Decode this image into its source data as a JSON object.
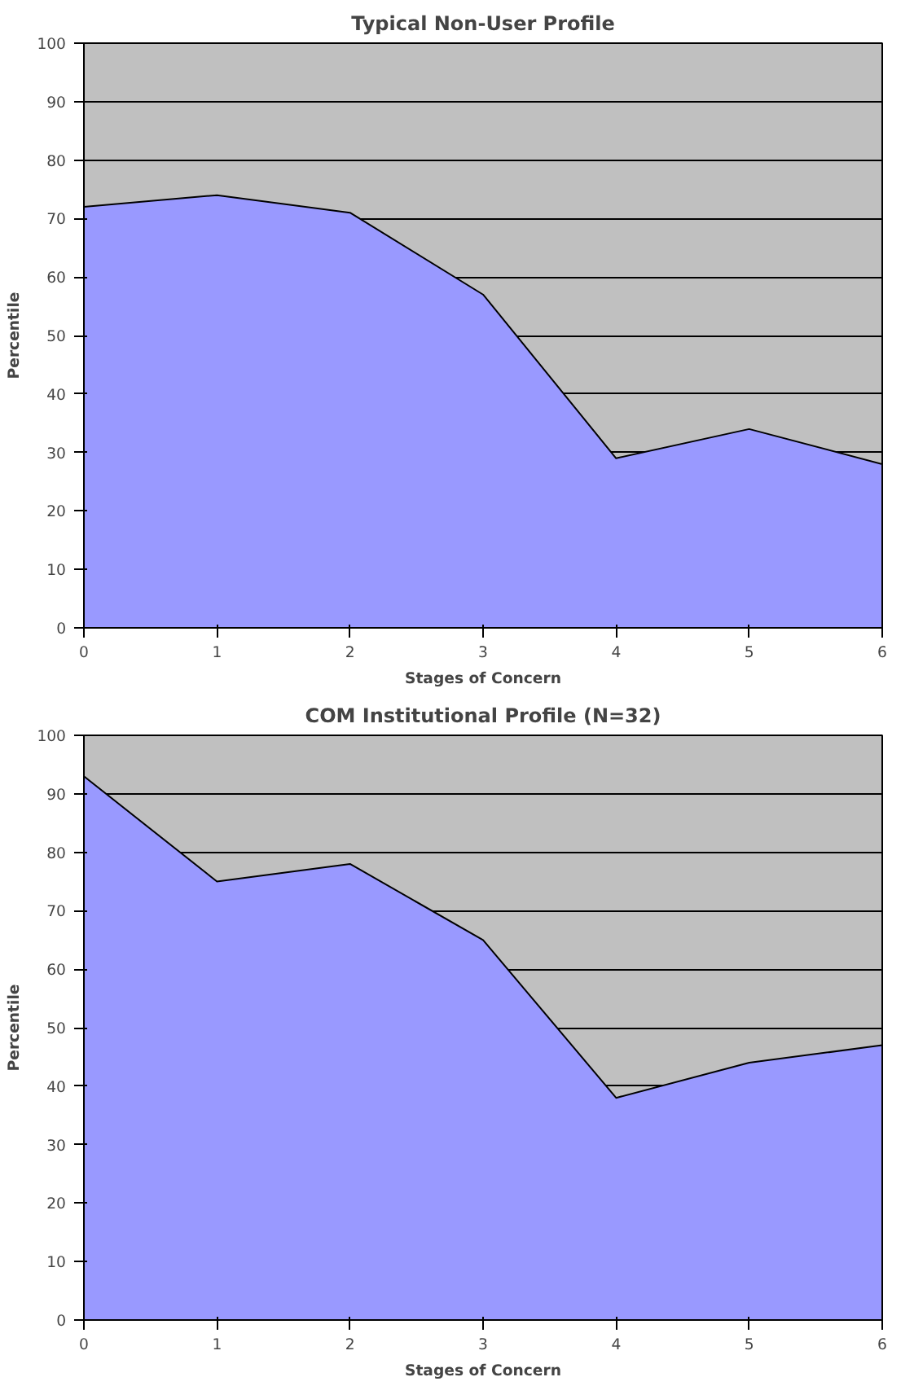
{
  "chart_data": [
    {
      "type": "area",
      "title": "Typical Non-User Profile",
      "xlabel": "Stages of Concern",
      "ylabel": "Percentile",
      "x": [
        0,
        1,
        2,
        3,
        4,
        5,
        6
      ],
      "values": [
        72,
        74,
        71,
        57,
        29,
        34,
        28
      ],
      "color": "#9999ff",
      "xlim": [
        0,
        6
      ],
      "ylim": [
        0,
        100
      ],
      "xticks": [
        0,
        1,
        2,
        3,
        4,
        5,
        6
      ],
      "yticks": [
        0,
        10,
        20,
        30,
        40,
        50,
        60,
        70,
        80,
        90,
        100
      ],
      "grid": "y"
    },
    {
      "type": "area",
      "title": "COM Institutional Profile (N=32)",
      "xlabel": "Stages of Concern",
      "ylabel": "Percentile",
      "x": [
        0,
        1,
        2,
        3,
        4,
        5,
        6
      ],
      "values": [
        93,
        75,
        78,
        65,
        38,
        44,
        47
      ],
      "color": "#9999ff",
      "xlim": [
        0,
        6
      ],
      "ylim": [
        0,
        100
      ],
      "xticks": [
        0,
        1,
        2,
        3,
        4,
        5,
        6
      ],
      "yticks": [
        0,
        10,
        20,
        30,
        40,
        50,
        60,
        70,
        80,
        90,
        100
      ],
      "grid": "y"
    }
  ]
}
